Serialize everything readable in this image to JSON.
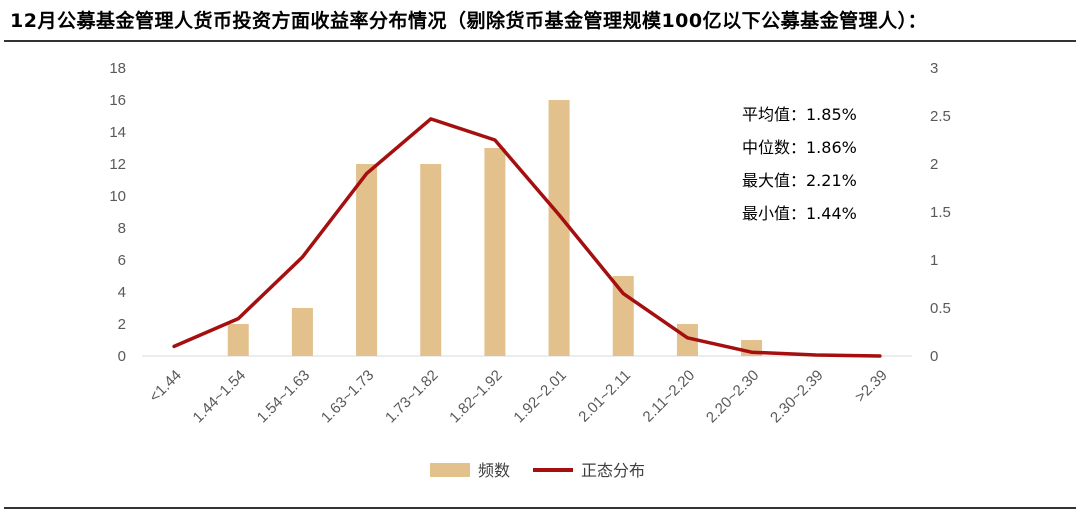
{
  "title": "12月公募基金管理人货币投资方面收益率分布情况（剔除货币基金管理规模100亿以下公募基金管理人）：",
  "stats": [
    "平均值：1.85%",
    "中位数：1.86%",
    "最大值：2.21%",
    "最小值：1.44%"
  ],
  "colors": {
    "bar": "#e2c18d",
    "line": "#a50f0f",
    "axis": "#d9d9d9",
    "tick": "#595959"
  },
  "chart_data": {
    "type": "bar",
    "categories": [
      "<1.44",
      "1.44~1.54",
      "1.54~1.63",
      "1.63~1.73",
      "1.73~1.82",
      "1.82~1.92",
      "1.92~2.01",
      "2.01~2.11",
      "2.11~2.20",
      "2.20~2.30",
      "2.30~2.39",
      ">2.39"
    ],
    "ylim": [
      0,
      18
    ],
    "yticks": [
      0,
      2,
      4,
      6,
      8,
      10,
      12,
      14,
      16,
      18
    ],
    "y2lim": [
      0,
      3
    ],
    "y2ticks": [
      "0",
      "0.5",
      "1",
      "1.5",
      "2",
      "2.5",
      "3"
    ],
    "y2values": [
      0,
      0.5,
      1,
      1.5,
      2,
      2.5,
      3
    ],
    "legend_position": "bottom",
    "grid": false,
    "series": [
      {
        "name": "频数",
        "type": "bar",
        "axis": "left",
        "values": [
          0,
          2,
          3,
          12,
          12,
          13,
          16,
          5,
          2,
          1,
          0,
          0
        ]
      },
      {
        "name": "正态分布",
        "type": "line",
        "axis": "right",
        "values": [
          0.1,
          0.39,
          1.03,
          1.9,
          2.47,
          2.25,
          1.47,
          0.65,
          0.19,
          0.04,
          0.01,
          0.0
        ]
      }
    ]
  }
}
